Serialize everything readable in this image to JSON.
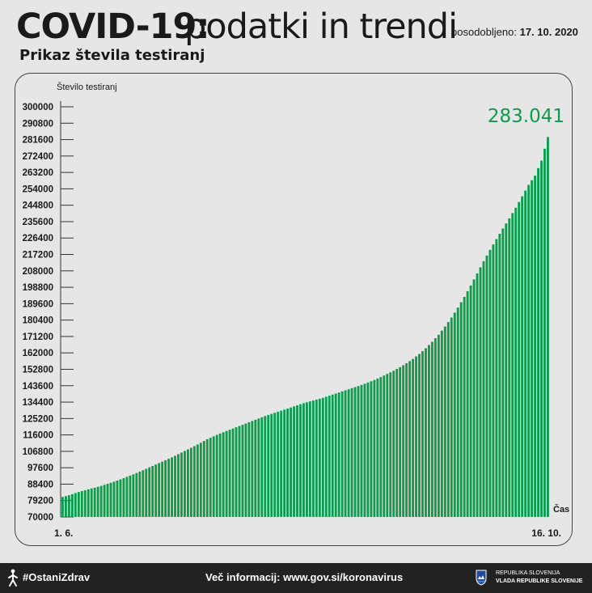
{
  "header": {
    "title_bold": "COVID-19:",
    "title_light": "podatki in trendi",
    "updated_label": "posodobljeno:",
    "updated_date": "17. 10. 2020",
    "subtitle": "Prikaz števila testiranj"
  },
  "chart_data": {
    "type": "bar",
    "ylabel": "Število testiranj",
    "xlabel": "Čas",
    "ylim": [
      70000,
      300000
    ],
    "y_ticks": [
      300000,
      290800,
      281600,
      272400,
      263200,
      254000,
      244800,
      235600,
      226400,
      217200,
      208000,
      198800,
      189600,
      180400,
      171200,
      162000,
      152800,
      143600,
      134400,
      125200,
      116000,
      106800,
      97600,
      88400,
      79200,
      70000
    ],
    "x_start_label": "1. 6.",
    "x_end_label": "16. 10.",
    "last_value_label": "283.041",
    "bar_color": "#0f9a4c",
    "grid": false,
    "values": [
      81200,
      81700,
      82200,
      82800,
      83400,
      84000,
      84500,
      85000,
      85500,
      86000,
      86400,
      86900,
      87400,
      88000,
      88600,
      89200,
      89800,
      90400,
      91100,
      91800,
      92500,
      93200,
      93900,
      94600,
      95400,
      96200,
      97000,
      97800,
      98600,
      99400,
      100200,
      101000,
      101800,
      102600,
      103400,
      104300,
      105200,
      106100,
      107000,
      107900,
      108800,
      109700,
      110600,
      111600,
      112600,
      113600,
      114400,
      115200,
      116000,
      116800,
      117500,
      118200,
      118900,
      119600,
      120300,
      121000,
      121700,
      122400,
      123100,
      123800,
      124500,
      125200,
      125900,
      126600,
      127200,
      127800,
      128400,
      129000,
      129600,
      130200,
      130800,
      131400,
      132000,
      132600,
      133200,
      133800,
      134300,
      134800,
      135300,
      135800,
      136300,
      136800,
      137400,
      138000,
      138600,
      139200,
      139800,
      140400,
      141000,
      141600,
      142200,
      142800,
      143400,
      144000,
      144700,
      145400,
      146100,
      146800,
      147600,
      148400,
      149300,
      150200,
      151100,
      152000,
      153000,
      154000,
      155100,
      156200,
      157400,
      158600,
      160000,
      161400,
      163000,
      164600,
      166400,
      168200,
      170200,
      172200,
      174500,
      176800,
      179300,
      181800,
      184600,
      187400,
      190400,
      193400,
      196600,
      199800,
      203200,
      206600,
      210000,
      213400,
      216600,
      219800,
      222800,
      225800,
      228800,
      231800,
      234600,
      237400,
      240400,
      243400,
      246600,
      249800,
      253000,
      256200,
      258800,
      261400,
      265600,
      269800,
      276500,
      283041
    ]
  },
  "footer": {
    "hashtag": "#OstaniZdrav",
    "more_info": "Več informacij: www.gov.si/koronavirus",
    "gov_line1": "REPUBLIKA SLOVENIJA",
    "gov_line2": "VLADA REPUBLIKE SLOVENIJE"
  }
}
